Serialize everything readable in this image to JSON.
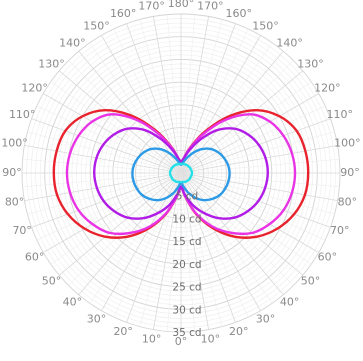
{
  "chart_data": {
    "type": "polar-line",
    "title": "",
    "angle_unit": "°",
    "radius_unit": "cd",
    "angle_ticks": [
      "0°",
      "10°",
      "20°",
      "30°",
      "40°",
      "50°",
      "60°",
      "70°",
      "80°",
      "90°",
      "100°",
      "110°",
      "120°",
      "130°",
      "140°",
      "150°",
      "160°",
      "170°",
      "180°",
      "170°",
      "160°",
      "150°",
      "140°",
      "130°",
      "120°",
      "110°",
      "100°",
      "90°",
      "80°",
      "70°",
      "60°",
      "50°",
      "40°",
      "30°",
      "20°",
      "10°"
    ],
    "radius_ticks": [
      "5 cd",
      "10 cd",
      "15 cd",
      "20 cd",
      "25 cd",
      "30 cd",
      "35 cd"
    ],
    "radius_range": [
      0,
      35
    ],
    "grid": true,
    "angles_deg": [
      0,
      10,
      20,
      30,
      40,
      50,
      60,
      70,
      80,
      90,
      100,
      110,
      120,
      130,
      140,
      150,
      160,
      170,
      180
    ],
    "series": [
      {
        "color": "#e8232d",
        "values": [
          3.0,
          5.2,
          9.5,
          14.0,
          18.3,
          21.8,
          24.5,
          26.5,
          27.7,
          28.0,
          27.8,
          27.1,
          25.0,
          21.5,
          16.2,
          10.5,
          6.0,
          3.2,
          2.5
        ]
      },
      {
        "color": "#e934e6",
        "values": [
          3.0,
          5.2,
          9.3,
          13.5,
          17.2,
          20.5,
          22.5,
          24.0,
          24.8,
          25.1,
          24.8,
          24.0,
          22.6,
          20.1,
          15.3,
          10.0,
          5.8,
          3.2,
          2.5
        ]
      },
      {
        "color": "#b11de6",
        "values": [
          3.0,
          4.8,
          7.5,
          10.2,
          13.0,
          15.3,
          16.9,
          18.1,
          18.8,
          19.1,
          18.9,
          18.2,
          17.0,
          15.2,
          12.3,
          8.5,
          5.3,
          3.2,
          2.5
        ]
      },
      {
        "color": "#2c9ae6",
        "values": [
          2.0,
          3.0,
          4.6,
          6.3,
          7.8,
          8.9,
          9.8,
          10.3,
          10.6,
          10.7,
          10.5,
          10.0,
          9.3,
          8.3,
          6.8,
          5.0,
          3.4,
          2.3,
          1.8
        ]
      },
      {
        "color": "#25e0e6",
        "values": [
          2.0,
          2.0,
          2.1,
          2.2,
          2.2,
          2.3,
          2.3,
          2.3,
          2.4,
          2.4,
          2.4,
          2.3,
          2.3,
          2.2,
          2.2,
          2.1,
          2.1,
          2.0,
          2.0
        ]
      }
    ]
  }
}
